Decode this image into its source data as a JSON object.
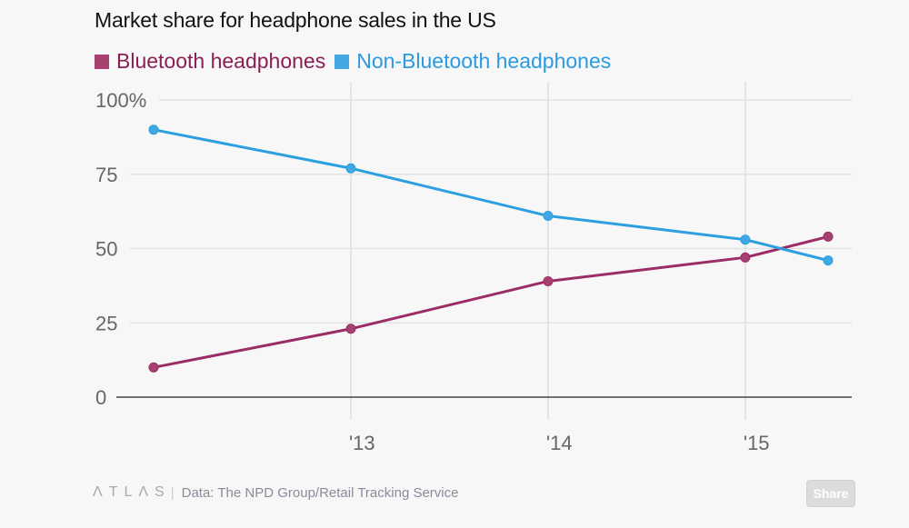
{
  "header": {
    "title": "Market share for headphone sales in the US"
  },
  "chart_data": {
    "type": "line",
    "title": "Market share for headphone sales in the US",
    "xlabel": "",
    "ylabel": "",
    "x": [
      2012,
      2013,
      2014,
      2015,
      2015.42
    ],
    "x_ticks": [
      2013,
      2014,
      2015
    ],
    "x_tick_labels": [
      "'13",
      "'14",
      "'15"
    ],
    "xlim": [
      2012,
      2015.42
    ],
    "y_ticks": [
      0,
      25,
      50,
      75,
      100
    ],
    "y_tick_labels": [
      "0",
      "25",
      "50",
      "75",
      "100%"
    ],
    "ylim": [
      0,
      100
    ],
    "grid": true,
    "legend_position": "top-left",
    "series": [
      {
        "name": "Bluetooth headphones",
        "color": "#9b2c66",
        "swatch": "#a6416f",
        "values": [
          10,
          23,
          39,
          47,
          54
        ]
      },
      {
        "name": "Non-Bluetooth headphones",
        "color": "#2b9fe0",
        "swatch": "#41a8e2",
        "values": [
          90,
          77,
          61,
          53,
          46
        ]
      }
    ]
  },
  "footer": {
    "logo": "ΛTLΛS",
    "separator": "|",
    "source": "Data: The NPD Group/Retail Tracking Service",
    "share_label": "Share"
  }
}
